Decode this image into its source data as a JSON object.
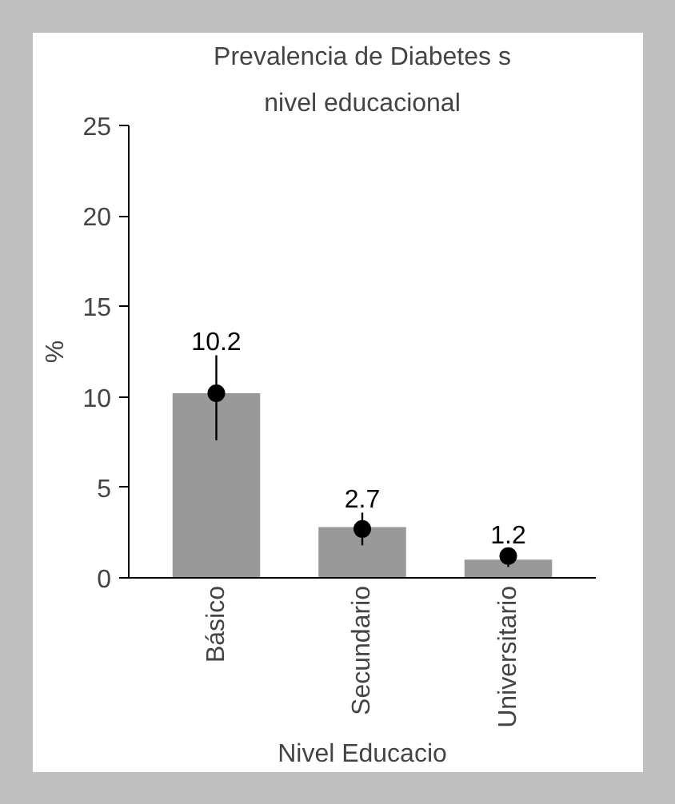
{
  "chart_data": {
    "type": "bar",
    "title": "Prevalencia de Diabetes s",
    "subtitle": "nivel educacional",
    "xlabel": "Nivel Educacio",
    "ylabel": "%",
    "categories": [
      "Básico",
      "Secundario",
      "Universitario"
    ],
    "ylim": [
      0,
      25
    ],
    "yticks": [
      0,
      5,
      10,
      15,
      20,
      25
    ],
    "grid": false,
    "series": [
      {
        "color": "#999999",
        "values": [
          10.2,
          2.8,
          1.0
        ]
      },
      {
        "type": "scatter",
        "color": "#000000",
        "marker": "circle",
        "values": [
          10.2,
          2.7,
          1.2
        ],
        "errors": [
          [
            7.6,
            12.3
          ],
          [
            1.8,
            3.6
          ],
          [
            0.6,
            1.6
          ]
        ],
        "value_labels": [
          "10.2",
          "2.7",
          "1.2"
        ]
      }
    ]
  }
}
